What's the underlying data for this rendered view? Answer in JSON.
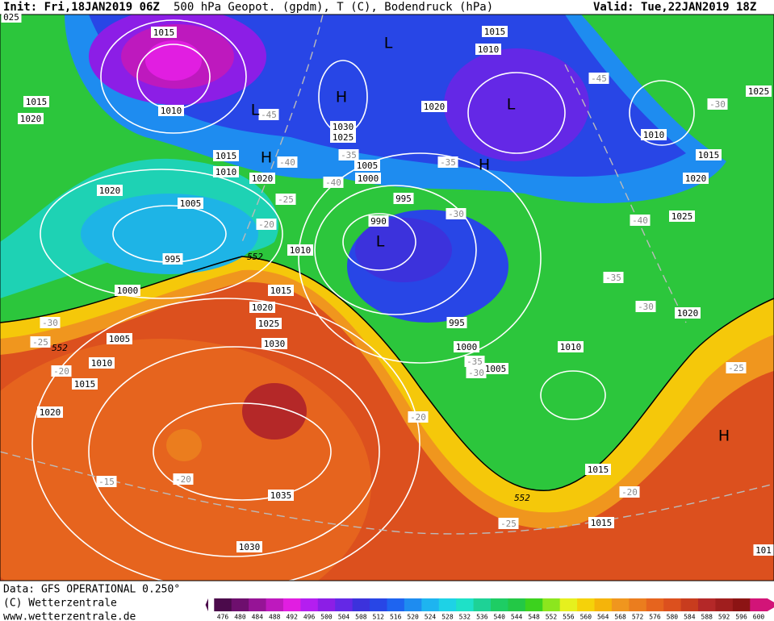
{
  "header": {
    "init": "Init: Fri,18JAN2019 06Z",
    "title": "500 hPa Geopot. (gpdm), T (C), Bodendruck (hPa)",
    "valid": "Valid: Tue,22JAN2019 18Z"
  },
  "footer": {
    "data_source": "Data: GFS OPERATIONAL 0.250°",
    "copyright": "(C) Wetterzentrale",
    "url": "www.wetterzentrale.de"
  },
  "colorbar": {
    "levels": [
      476,
      480,
      484,
      488,
      492,
      496,
      500,
      504,
      508,
      512,
      516,
      520,
      524,
      528,
      532,
      536,
      540,
      544,
      548,
      552,
      556,
      560,
      564,
      568,
      572,
      576,
      580,
      584,
      588,
      592,
      596,
      600
    ],
    "colors": [
      "#4b0a4b",
      "#6e0f6e",
      "#961496",
      "#be19be",
      "#e11ee1",
      "#b41ef0",
      "#8c1ee6",
      "#6428e6",
      "#3c32dc",
      "#2846e6",
      "#1e64f0",
      "#1e8cf0",
      "#1eb4f0",
      "#1ed2e6",
      "#1ee1c8",
      "#1ed296",
      "#1ecd64",
      "#23c846",
      "#3cd21e",
      "#8ce61e",
      "#e6f01e",
      "#f5d20a",
      "#f5b40a",
      "#f0961e",
      "#eb7d1e",
      "#e6641e",
      "#dc501e",
      "#c83c1e",
      "#b42828",
      "#a01e1e",
      "#8c1414",
      "#d21478"
    ]
  },
  "map": {
    "isobar_labels": [
      "1015",
      "1010",
      "1015",
      "1020",
      "1015",
      "1010",
      "1020",
      "1005",
      "1020",
      "995",
      "1000",
      "1030",
      "1025",
      "1005",
      "1000",
      "1020",
      "995",
      "990",
      "1010",
      "1015",
      "1020",
      "1025",
      "1030",
      "1005",
      "1010",
      "1015",
      "1020",
      "1035",
      "1030",
      "995",
      "1000",
      "1005",
      "1010",
      "1015",
      "1015",
      "1015",
      "1010",
      "1010",
      "1015",
      "1020",
      "1025",
      "1020",
      "1025",
      "101",
      "025"
    ],
    "contour_labels": [
      "552",
      "552",
      "552"
    ],
    "temperature_labels": [
      "-45",
      "-40",
      "-35",
      "-40",
      "-25",
      "-20",
      "-35",
      "-30",
      "-45",
      "-30",
      "-40",
      "-35",
      "-30",
      "-30",
      "-25",
      "-20",
      "-35",
      "-30",
      "-20",
      "-15",
      "-20",
      "-25",
      "-20",
      "-25"
    ],
    "pressure_centers": [
      "L",
      "H",
      "L",
      "H",
      "H",
      "L",
      "H",
      "L"
    ]
  }
}
